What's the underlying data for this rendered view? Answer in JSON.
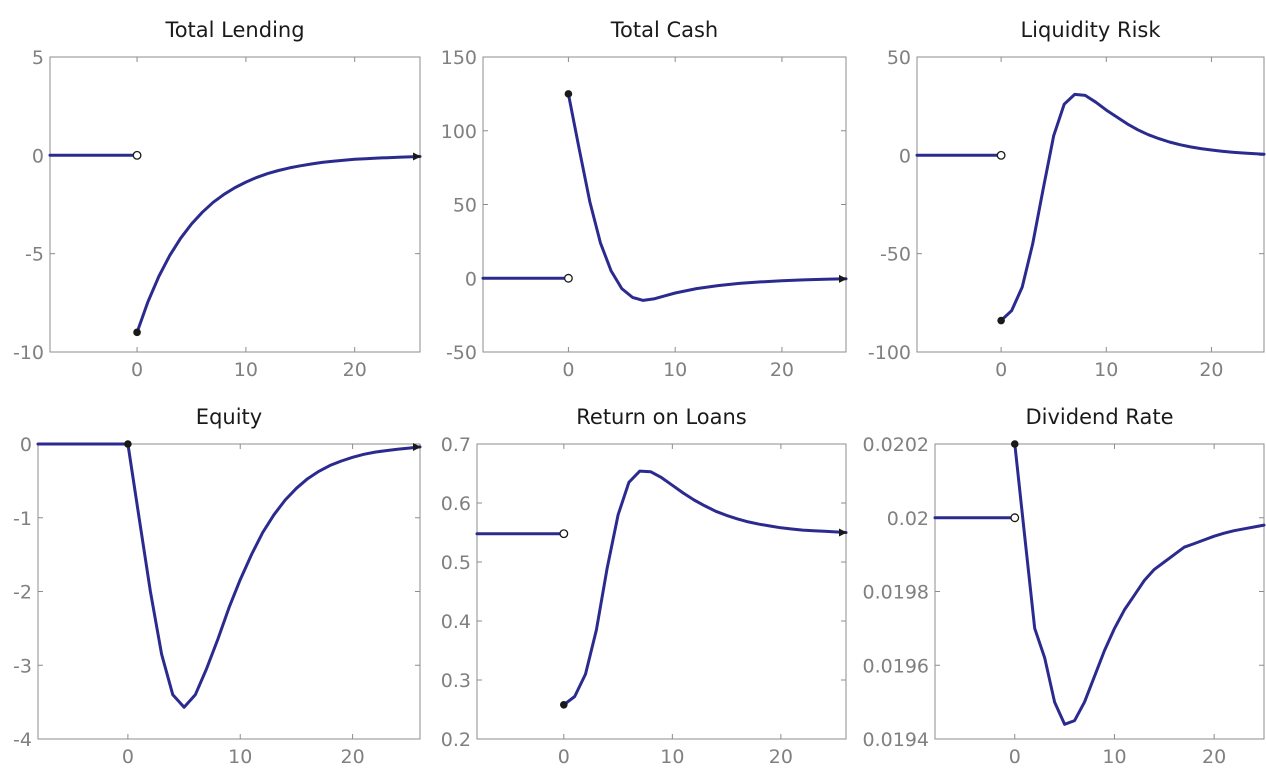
{
  "style": {
    "line_color": "#2b2b8f",
    "frame_color": "#8c8c8c",
    "tick_color": "#808080",
    "marker_color": "#1a1a1a",
    "background": "#ffffff"
  },
  "chart_data": [
    {
      "type": "line",
      "title": "Total Lending",
      "xlim": [
        -8,
        26
      ],
      "ylim": [
        -10,
        5
      ],
      "xticks": [
        0,
        10,
        20
      ],
      "xtick_labels": [
        "0",
        "10",
        "20"
      ],
      "yticks": [
        -10,
        -5,
        0,
        5
      ],
      "ytick_labels": [
        "-10",
        "-5",
        "0",
        "5"
      ],
      "pre": {
        "x": [
          -8,
          0
        ],
        "y": [
          0,
          0
        ]
      },
      "open_marker": {
        "x": 0,
        "y": 0
      },
      "post": {
        "x": [
          0,
          1,
          2,
          3,
          4,
          5,
          6,
          7,
          8,
          9,
          10,
          11,
          12,
          13,
          14,
          15,
          16,
          17,
          18,
          19,
          20,
          21,
          22,
          23,
          24,
          25,
          26
        ],
        "y": [
          -9,
          -7.45,
          -6.16,
          -5.1,
          -4.22,
          -3.49,
          -2.89,
          -2.39,
          -1.98,
          -1.64,
          -1.36,
          -1.12,
          -0.93,
          -0.77,
          -0.64,
          -0.53,
          -0.44,
          -0.36,
          -0.3,
          -0.25,
          -0.2,
          -0.17,
          -0.14,
          -0.12,
          -0.1,
          -0.08,
          -0.06
        ]
      },
      "filled_marker": {
        "x": 0,
        "y": -9
      },
      "arrow": true,
      "grid": false
    },
    {
      "type": "line",
      "title": "Total Cash",
      "xlim": [
        -8,
        26
      ],
      "ylim": [
        -50,
        150
      ],
      "xticks": [
        0,
        10,
        20
      ],
      "xtick_labels": [
        "0",
        "10",
        "20"
      ],
      "yticks": [
        -50,
        0,
        50,
        100,
        150
      ],
      "ytick_labels": [
        "-50",
        "0",
        "50",
        "100",
        "150"
      ],
      "pre": {
        "x": [
          -8,
          0
        ],
        "y": [
          0,
          0
        ]
      },
      "open_marker": {
        "x": 0,
        "y": 0
      },
      "post": {
        "x": [
          0,
          1,
          2,
          3,
          4,
          5,
          6,
          7,
          8,
          9,
          10,
          12,
          14,
          16,
          18,
          20,
          22,
          24,
          26
        ],
        "y": [
          125,
          88,
          52,
          24,
          5,
          -7,
          -13,
          -15,
          -14,
          -12,
          -10,
          -7,
          -5,
          -3.5,
          -2.5,
          -1.7,
          -1.1,
          -0.7,
          -0.4
        ]
      },
      "filled_marker": {
        "x": 0,
        "y": 125
      },
      "arrow": true,
      "grid": false
    },
    {
      "type": "line",
      "title": "Liquidity Risk",
      "xlim": [
        -8,
        25
      ],
      "ylim": [
        -100,
        50
      ],
      "xticks": [
        0,
        10,
        20
      ],
      "xtick_labels": [
        "0",
        "10",
        "20"
      ],
      "yticks": [
        -100,
        -50,
        0,
        50
      ],
      "ytick_labels": [
        "-100",
        "-50",
        "0",
        "50"
      ],
      "pre": {
        "x": [
          -8,
          0
        ],
        "y": [
          0,
          0
        ]
      },
      "open_marker": {
        "x": 0,
        "y": 0
      },
      "post": {
        "x": [
          0,
          1,
          2,
          3,
          4,
          5,
          6,
          7,
          8,
          9,
          10,
          11,
          12,
          13,
          14,
          15,
          16,
          17,
          18,
          19,
          20,
          21,
          22,
          23,
          24,
          25
        ],
        "y": [
          -84,
          -79,
          -67,
          -45,
          -17,
          10,
          26,
          31,
          30.5,
          27,
          23,
          19.5,
          16,
          13,
          10.5,
          8.5,
          6.8,
          5.4,
          4.3,
          3.4,
          2.7,
          2.1,
          1.6,
          1.2,
          0.9,
          0.6
        ]
      },
      "filled_marker": {
        "x": 0,
        "y": -84
      },
      "arrow": false,
      "grid": false
    },
    {
      "type": "line",
      "title": "Equity",
      "xlim": [
        -8,
        26
      ],
      "ylim": [
        -4,
        0
      ],
      "xticks": [
        0,
        10,
        20
      ],
      "xtick_labels": [
        "0",
        "10",
        "20"
      ],
      "yticks": [
        -4,
        -3,
        -2,
        -1,
        0
      ],
      "ytick_labels": [
        "-4",
        "-3",
        "-2",
        "-1",
        "0"
      ],
      "pre": {
        "x": [
          -8,
          0
        ],
        "y": [
          0,
          0
        ]
      },
      "open_marker": null,
      "post": {
        "x": [
          0,
          1,
          2,
          3,
          4,
          5,
          6,
          7,
          8,
          9,
          10,
          11,
          12,
          13,
          14,
          15,
          16,
          17,
          18,
          19,
          20,
          21,
          22,
          23,
          24,
          25,
          26
        ],
        "y": [
          0,
          -1,
          -2,
          -2.85,
          -3.4,
          -3.57,
          -3.4,
          -3.05,
          -2.65,
          -2.22,
          -1.84,
          -1.5,
          -1.2,
          -0.96,
          -0.76,
          -0.6,
          -0.47,
          -0.37,
          -0.29,
          -0.23,
          -0.18,
          -0.14,
          -0.11,
          -0.09,
          -0.07,
          -0.055,
          -0.04
        ]
      },
      "filled_marker": {
        "x": 0,
        "y": 0
      },
      "arrow": true,
      "grid": false
    },
    {
      "type": "line",
      "title": "Return on Loans",
      "xlim": [
        -8,
        26
      ],
      "ylim": [
        0.2,
        0.7
      ],
      "xticks": [
        0,
        10,
        20
      ],
      "xtick_labels": [
        "0",
        "10",
        "20"
      ],
      "yticks": [
        0.2,
        0.3,
        0.4,
        0.5,
        0.6,
        0.7
      ],
      "ytick_labels": [
        "0.2",
        "0.3",
        "0.4",
        "0.5",
        "0.6",
        "0.7"
      ],
      "pre": {
        "x": [
          -8,
          0
        ],
        "y": [
          0.548,
          0.548
        ]
      },
      "open_marker": {
        "x": 0,
        "y": 0.548
      },
      "post": {
        "x": [
          0,
          1,
          2,
          3,
          4,
          5,
          6,
          7,
          8,
          9,
          10,
          11,
          12,
          13,
          14,
          15,
          16,
          17,
          18,
          19,
          20,
          21,
          22,
          23,
          24,
          25,
          26
        ],
        "y": [
          0.258,
          0.272,
          0.31,
          0.385,
          0.49,
          0.58,
          0.635,
          0.654,
          0.653,
          0.643,
          0.63,
          0.617,
          0.605,
          0.595,
          0.586,
          0.579,
          0.573,
          0.568,
          0.564,
          0.561,
          0.558,
          0.556,
          0.554,
          0.553,
          0.552,
          0.551,
          0.55
        ]
      },
      "filled_marker": {
        "x": 0,
        "y": 0.258
      },
      "arrow": true,
      "grid": false
    },
    {
      "type": "line",
      "title": "Dividend Rate",
      "xlim": [
        -8,
        25
      ],
      "ylim": [
        0.0194,
        0.0202
      ],
      "xticks": [
        0,
        10,
        20
      ],
      "xtick_labels": [
        "0",
        "10",
        "20"
      ],
      "yticks": [
        0.0194,
        0.0196,
        0.0198,
        0.02,
        0.0202
      ],
      "ytick_labels": [
        "0.0194",
        "0.0196",
        "0.0198",
        "0.02",
        "0.0202"
      ],
      "pre": {
        "x": [
          -8,
          0
        ],
        "y": [
          0.02,
          0.02
        ]
      },
      "open_marker": {
        "x": 0,
        "y": 0.02
      },
      "post": {
        "x": [
          0,
          1,
          2,
          3,
          4,
          5,
          6,
          7,
          8,
          9,
          10,
          11,
          12,
          13,
          14,
          15,
          16,
          17,
          18,
          19,
          20,
          21,
          22,
          23,
          24,
          25
        ],
        "y": [
          0.0202,
          0.01995,
          0.0197,
          0.01962,
          0.0195,
          0.01944,
          0.01945,
          0.0195,
          0.01957,
          0.01964,
          0.0197,
          0.01975,
          0.01979,
          0.01983,
          0.01986,
          0.01988,
          0.0199,
          0.01992,
          0.01993,
          0.01994,
          0.01995,
          0.019958,
          0.019965,
          0.01997,
          0.019975,
          0.01998
        ]
      },
      "filled_marker": {
        "x": 0,
        "y": 0.0202
      },
      "arrow": false,
      "grid": false
    }
  ]
}
